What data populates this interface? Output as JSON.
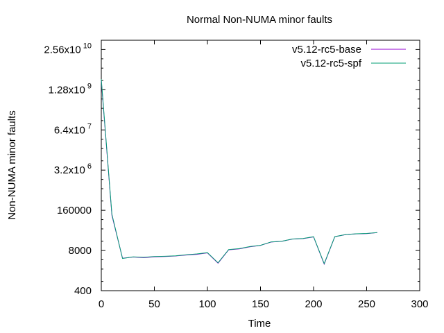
{
  "chart_data": {
    "type": "line",
    "title": "Normal Non-NUMA minor faults",
    "xlabel": "Time",
    "ylabel": "Non-NUMA minor faults",
    "xlim": [
      0,
      300
    ],
    "ylim": [
      400,
      51200000000
    ],
    "y_scale": "log",
    "grid": false,
    "legend_position": "top-right",
    "x_ticks": [
      {
        "value": 0,
        "label": "0"
      },
      {
        "value": 50,
        "label": "50"
      },
      {
        "value": 100,
        "label": "100"
      },
      {
        "value": 150,
        "label": "150"
      },
      {
        "value": 200,
        "label": "200"
      },
      {
        "value": 250,
        "label": "250"
      },
      {
        "value": 300,
        "label": "300"
      }
    ],
    "y_ticks": [
      {
        "value": 400,
        "label": "400",
        "exp": ""
      },
      {
        "value": 8000,
        "label": "8000",
        "exp": ""
      },
      {
        "value": 160000,
        "label": "160000",
        "exp": ""
      },
      {
        "value": 3200000,
        "label": "3.2x10",
        "exp": "6"
      },
      {
        "value": 64000000,
        "label": "6.4x10",
        "exp": "7"
      },
      {
        "value": 1280000000,
        "label": "1.28x10",
        "exp": "9"
      },
      {
        "value": 25600000000,
        "label": "2.56x10",
        "exp": "10"
      }
    ],
    "series": [
      {
        "name": "v5.12-rc5-base",
        "color": "#9400d3",
        "x": [
          0,
          10,
          20,
          30,
          40,
          50,
          60,
          70,
          80,
          90,
          100,
          110,
          120,
          130,
          140,
          150,
          160,
          170,
          180,
          190,
          200,
          210,
          220,
          230,
          240,
          250,
          260
        ],
        "y": [
          2500000000,
          110000,
          4500,
          4900,
          4700,
          5000,
          5100,
          5300,
          5700,
          6000,
          6700,
          3100,
          8400,
          9000,
          10500,
          11700,
          15000,
          15800,
          18700,
          19300,
          22000,
          2900,
          22300,
          26000,
          27600,
          28200,
          30300
        ]
      },
      {
        "name": "v5.12-rc5-spf",
        "color": "#009e73",
        "x": [
          0,
          10,
          20,
          30,
          40,
          50,
          60,
          70,
          80,
          90,
          100,
          110,
          120,
          130,
          140,
          150,
          160,
          170,
          180,
          190,
          200,
          210,
          220,
          230,
          240,
          250,
          260
        ],
        "y": [
          2800000000,
          120000,
          4400,
          5000,
          4800,
          5100,
          5200,
          5400,
          5800,
          6200,
          6800,
          3200,
          8600,
          9200,
          10700,
          11800,
          15200,
          16000,
          18800,
          19500,
          22300,
          3000,
          22500,
          26200,
          27800,
          28500,
          30500
        ]
      }
    ]
  }
}
